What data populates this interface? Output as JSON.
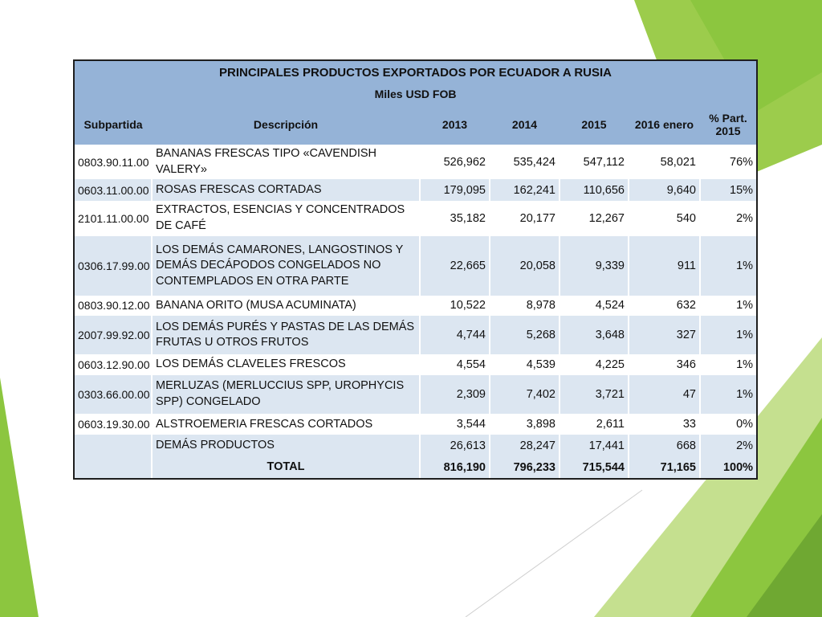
{
  "table": {
    "title": "PRINCIPALES PRODUCTOS EXPORTADOS POR ECUADOR A RUSIA",
    "subtitle": "Miles USD FOB",
    "headers": {
      "subpartida": "Subpartida",
      "descripcion": "Descripción",
      "y2013": "2013",
      "y2014": "2014",
      "y2015": "2015",
      "y2016": "2016 enero",
      "part_line1": "% Part.",
      "part_line2": "2015"
    },
    "rows": [
      {
        "code": "0803.90.11.00",
        "desc": "BANANAS FRESCAS TIPO «CAVENDISH VALERY»",
        "v2013": "526,962",
        "v2014": "535,424",
        "v2015": "547,112",
        "v2016": "58,021",
        "part": "76%"
      },
      {
        "code": "0603.11.00.00",
        "desc": "ROSAS FRESCAS CORTADAS",
        "v2013": "179,095",
        "v2014": "162,241",
        "v2015": "110,656",
        "v2016": "9,640",
        "part": "15%"
      },
      {
        "code": "2101.11.00.00",
        "desc": "EXTRACTOS, ESENCIAS Y CONCENTRADOS DE CAFÉ",
        "v2013": "35,182",
        "v2014": "20,177",
        "v2015": "12,267",
        "v2016": "540",
        "part": "2%"
      },
      {
        "code": "0306.17.99.00",
        "desc": "LOS DEMÁS CAMARONES, LANGOSTINOS Y DEMÁS DECÁPODOS CONGELADOS NO CONTEMPLADOS EN OTRA PARTE",
        "v2013": "22,665",
        "v2014": "20,058",
        "v2015": "9,339",
        "v2016": "911",
        "part": "1%"
      },
      {
        "code": "0803.90.12.00",
        "desc": "BANANA ORITO (MUSA ACUMINATA)",
        "v2013": "10,522",
        "v2014": "8,978",
        "v2015": "4,524",
        "v2016": "632",
        "part": "1%"
      },
      {
        "code": "2007.99.92.00",
        "desc": "LOS DEMÁS PURÉS Y PASTAS DE LAS DEMÁS FRUTAS U OTROS FRUTOS",
        "v2013": "4,744",
        "v2014": "5,268",
        "v2015": "3,648",
        "v2016": "327",
        "part": "1%"
      },
      {
        "code": "0603.12.90.00",
        "desc": "LOS DEMÁS CLAVELES FRESCOS",
        "v2013": "4,554",
        "v2014": "4,539",
        "v2015": "4,225",
        "v2016": "346",
        "part": "1%"
      },
      {
        "code": "0303.66.00.00",
        "desc": "MERLUZAS (MERLUCCIUS SPP, UROPHYCIS SPP) CONGELADO",
        "v2013": "2,309",
        "v2014": "7,402",
        "v2015": "3,721",
        "v2016": "47",
        "part": "1%"
      },
      {
        "code": "0603.19.30.00",
        "desc": "ALSTROEMERIA FRESCAS CORTADOS",
        "v2013": "3,544",
        "v2014": "3,898",
        "v2015": "2,611",
        "v2016": "33",
        "part": "0%"
      },
      {
        "code": "",
        "desc": "DEMÁS PRODUCTOS",
        "v2013": "26,613",
        "v2014": "28,247",
        "v2015": "17,441",
        "v2016": "668",
        "part": "2%"
      }
    ],
    "total": {
      "label": "TOTAL",
      "v2013": "816,190",
      "v2014": "796,233",
      "v2015": "715,544",
      "v2016": "71,165",
      "part": "100%"
    }
  },
  "colors": {
    "header": "#95b3d7",
    "band": "#dce6f1",
    "accent_green": "#8cc63f",
    "dark_green": "#6fa832"
  }
}
